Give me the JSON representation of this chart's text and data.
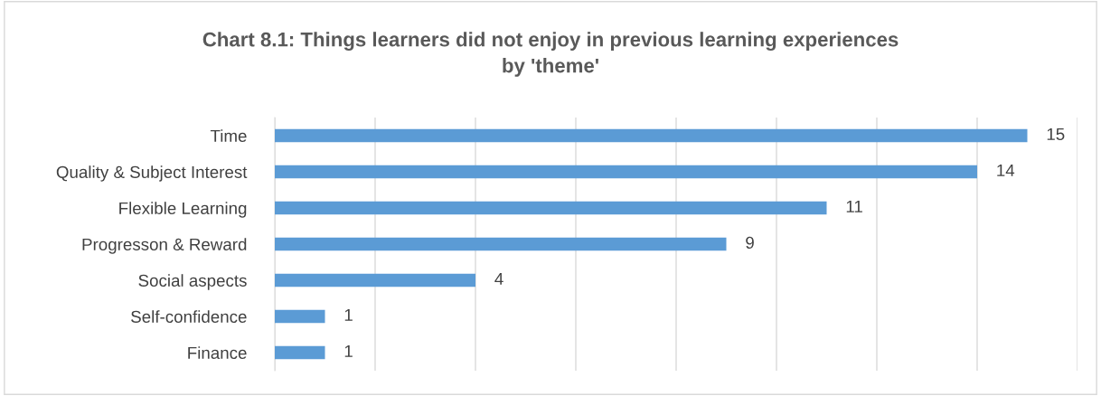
{
  "chart_data": {
    "type": "bar",
    "orientation": "horizontal",
    "title": "Chart 8.1: Things learners did not enjoy in previous learning experiences\nby 'theme'",
    "categories": [
      "Time",
      "Quality & Subject Interest",
      "Flexible Learning",
      "Progresson & Reward",
      "Social aspects",
      "Self-confidence",
      "Finance"
    ],
    "values": [
      15,
      14,
      11,
      9,
      4,
      1,
      1
    ],
    "color": "#5b9bd5",
    "xlim": [
      0,
      16
    ],
    "xticks": [
      {
        "value": 0,
        "label": null
      },
      {
        "value": 2,
        "label": null
      },
      {
        "value": 4,
        "label": null
      },
      {
        "value": 6,
        "label": null
      },
      {
        "value": 8,
        "label": null
      },
      {
        "value": 10,
        "label": null
      },
      {
        "value": 12,
        "label": null
      },
      {
        "value": 14,
        "label": null
      },
      {
        "value": 16,
        "label": null
      }
    ],
    "tick_labels": "y",
    "grid": "x",
    "data_labels": true
  }
}
